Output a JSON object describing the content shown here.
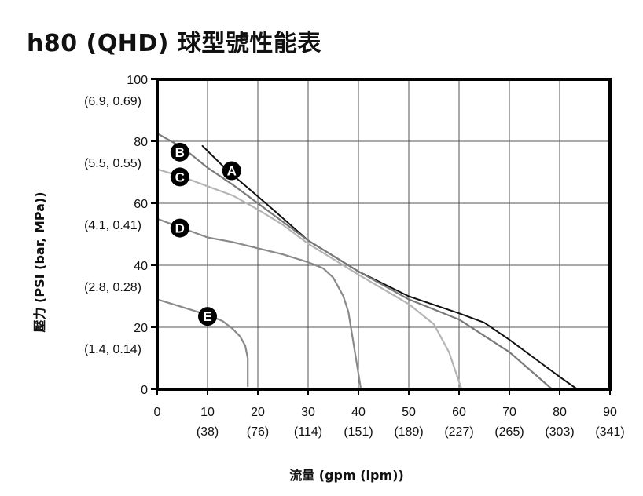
{
  "title": "h80 (QHD) 球型號性能表",
  "chart_data": {
    "type": "line",
    "title": "h80 (QHD) 球型號性能表",
    "xlabel": "流量 (gpm (lpm))",
    "ylabel": "壓力 (PSI (bar, MPa))",
    "xlim": [
      0,
      90
    ],
    "ylim": [
      0,
      100
    ],
    "grid": true,
    "x_ticks": [
      {
        "value": 0,
        "label": "0",
        "sub": ""
      },
      {
        "value": 10,
        "label": "10",
        "sub": "(38)"
      },
      {
        "value": 20,
        "label": "20",
        "sub": "(76)"
      },
      {
        "value": 30,
        "label": "30",
        "sub": "(114)"
      },
      {
        "value": 40,
        "label": "40",
        "sub": "(151)"
      },
      {
        "value": 50,
        "label": "50",
        "sub": "(189)"
      },
      {
        "value": 60,
        "label": "60",
        "sub": "(227)"
      },
      {
        "value": 70,
        "label": "70",
        "sub": "(265)"
      },
      {
        "value": 80,
        "label": "80",
        "sub": "(303)"
      },
      {
        "value": 90,
        "label": "90",
        "sub": "(341)"
      }
    ],
    "y_ticks": [
      {
        "value": 0,
        "label": "0",
        "sub": ""
      },
      {
        "value": 20,
        "label": "20",
        "sub": "(1.4, 0.14)"
      },
      {
        "value": 40,
        "label": "40",
        "sub": "(2.8, 0.28)"
      },
      {
        "value": 60,
        "label": "60",
        "sub": "(4.1, 0.41)"
      },
      {
        "value": 80,
        "label": "80",
        "sub": "(5.5, 0.55)"
      },
      {
        "value": 100,
        "label": "100",
        "sub": "(6.9, 0.69)"
      }
    ],
    "series": [
      {
        "name": "A",
        "color": "#111111",
        "label_at": [
          14.8,
          70.5
        ],
        "points": [
          [
            9,
            78.5
          ],
          [
            14,
            70.5
          ],
          [
            18,
            65
          ],
          [
            23,
            58
          ],
          [
            30,
            48
          ],
          [
            40,
            38
          ],
          [
            50,
            30
          ],
          [
            60,
            24.5
          ],
          [
            65,
            21.5
          ],
          [
            70,
            16
          ],
          [
            75,
            10
          ],
          [
            80,
            4
          ],
          [
            83.5,
            0
          ]
        ]
      },
      {
        "name": "B",
        "color": "#7a7a7a",
        "label_at": [
          4.5,
          76.5
        ],
        "points": [
          [
            0,
            82.5
          ],
          [
            5,
            78
          ],
          [
            10,
            71.5
          ],
          [
            15,
            66
          ],
          [
            20,
            60
          ],
          [
            25,
            54
          ],
          [
            30,
            48
          ],
          [
            40,
            38
          ],
          [
            50,
            29
          ],
          [
            60,
            22.5
          ],
          [
            70,
            12
          ],
          [
            78.5,
            0
          ]
        ]
      },
      {
        "name": "C",
        "color": "#b5b5b5",
        "label_at": [
          4.5,
          68.5
        ],
        "points": [
          [
            0,
            71
          ],
          [
            5,
            68.5
          ],
          [
            10,
            65.5
          ],
          [
            15,
            62.5
          ],
          [
            20,
            58
          ],
          [
            25,
            53
          ],
          [
            30,
            47
          ],
          [
            40,
            37
          ],
          [
            50,
            27.5
          ],
          [
            55,
            21
          ],
          [
            58,
            12
          ],
          [
            60.5,
            0
          ]
        ]
      },
      {
        "name": "D",
        "color": "#8a8a8a",
        "label_at": [
          4.5,
          52
        ],
        "points": [
          [
            0,
            55
          ],
          [
            5,
            52
          ],
          [
            10,
            49
          ],
          [
            15,
            47.5
          ],
          [
            20,
            45.5
          ],
          [
            25,
            43.5
          ],
          [
            30,
            41
          ],
          [
            33,
            39
          ],
          [
            35,
            36
          ],
          [
            37,
            30
          ],
          [
            38,
            25
          ],
          [
            38.5,
            20
          ],
          [
            39.5,
            10
          ],
          [
            40.5,
            0
          ]
        ]
      },
      {
        "name": "E",
        "color": "#8a8a8a",
        "label_at": [
          10,
          23.5
        ],
        "points": [
          [
            0,
            29
          ],
          [
            5,
            26.5
          ],
          [
            10,
            24
          ],
          [
            13,
            22
          ],
          [
            15,
            19.5
          ],
          [
            16.5,
            17
          ],
          [
            17.5,
            14
          ],
          [
            18,
            10
          ],
          [
            18,
            5
          ],
          [
            18,
            1
          ]
        ]
      }
    ]
  }
}
